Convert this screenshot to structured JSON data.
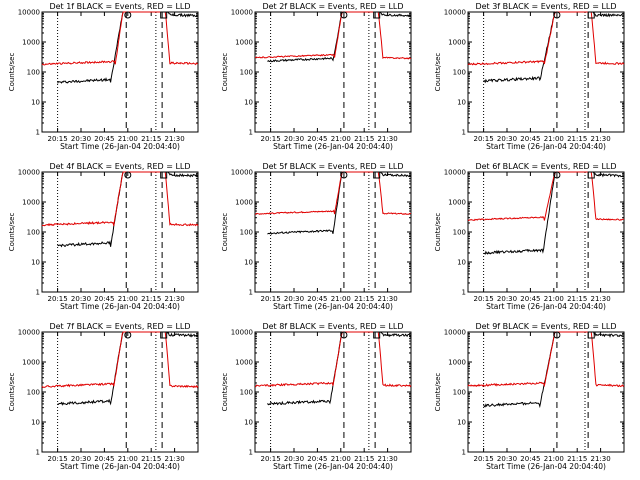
{
  "colors": {
    "events": "#000000",
    "lld": "#e00000",
    "axes": "#000000",
    "background": "#ffffff"
  },
  "chart_data": [
    {
      "type": "line",
      "title": "Det 1f BLACK = Events, RED = LLD",
      "xlabel": "Start Time (26-Jan-04 20:04:40)",
      "ylabel": "Counts/sec",
      "xticks": [
        "20:15",
        "20:30",
        "20:45",
        "21:00",
        "21:15",
        "21:30"
      ],
      "yticks": [
        "1",
        "10",
        "100",
        "1000",
        "10000"
      ],
      "yscale": "log",
      "ylim": [
        1,
        10000
      ],
      "xlim_minutes": [
        0,
        100
      ],
      "grid": false,
      "legend": "none",
      "series": [
        {
          "name": "BLACK = Events",
          "x_start": 10,
          "x_end": 100,
          "rise_start": 44,
          "peak_start": 52,
          "peak_end": 79,
          "fall_end": 82,
          "base": 45,
          "after": 8000,
          "noise": 0.04
        },
        {
          "name": "RED = LLD",
          "x_start": 0,
          "x_end": 100,
          "rise_start": 47,
          "peak_start": 52,
          "peak_end": 79,
          "fall_end": 82,
          "base": 180,
          "after": 200,
          "noise": 0.03
        }
      ],
      "vlines_dotted": [
        10,
        73
      ],
      "vlines_dashed": [
        54,
        77
      ],
      "markers": [
        {
          "shape": "circle",
          "x": 55
        },
        {
          "shape": "square",
          "x": 78
        }
      ]
    },
    {
      "type": "line",
      "title": "Det 2f BLACK = Events, RED = LLD",
      "xlabel": "Start Time (26-Jan-04 20:04:40)",
      "ylabel": "Counts/sec",
      "xticks": [
        "20:15",
        "20:30",
        "20:45",
        "21:00",
        "21:15",
        "21:30"
      ],
      "yticks": [
        "1",
        "10",
        "100",
        "1000",
        "10000"
      ],
      "yscale": "log",
      "ylim": [
        1,
        10000
      ],
      "xlim_minutes": [
        0,
        100
      ],
      "grid": false,
      "legend": "none",
      "series": [
        {
          "name": "BLACK = Events",
          "x_start": 8,
          "x_end": 100,
          "rise_start": 50,
          "peak_start": 56,
          "peak_end": 79,
          "fall_end": 82,
          "base": 230,
          "after": 8000,
          "noise": 0.03
        },
        {
          "name": "RED = LLD",
          "x_start": 0,
          "x_end": 100,
          "rise_start": 51,
          "peak_start": 56,
          "peak_end": 79,
          "fall_end": 82,
          "base": 300,
          "after": 300,
          "noise": 0.02
        }
      ],
      "vlines_dotted": [
        10,
        73
      ],
      "vlines_dashed": [
        57,
        77
      ],
      "markers": [
        {
          "shape": "circle",
          "x": 57
        },
        {
          "shape": "square",
          "x": 78
        }
      ]
    },
    {
      "type": "line",
      "title": "Det 3f BLACK = Events, RED = LLD",
      "xlabel": "Start Time (26-Jan-04 20:04:40)",
      "ylabel": "Counts/sec",
      "xticks": [
        "20:15",
        "20:30",
        "20:45",
        "21:00",
        "21:15",
        "21:30"
      ],
      "yticks": [
        "1",
        "10",
        "100",
        "1000",
        "10000"
      ],
      "yscale": "log",
      "ylim": [
        1,
        10000
      ],
      "xlim_minutes": [
        0,
        100
      ],
      "grid": false,
      "legend": "none",
      "series": [
        {
          "name": "BLACK = Events",
          "x_start": 10,
          "x_end": 100,
          "rise_start": 46,
          "peak_start": 56,
          "peak_end": 79,
          "fall_end": 82,
          "base": 50,
          "after": 8000,
          "noise": 0.04
        },
        {
          "name": "RED = LLD",
          "x_start": 0,
          "x_end": 100,
          "rise_start": 49,
          "peak_start": 56,
          "peak_end": 79,
          "fall_end": 82,
          "base": 180,
          "after": 200,
          "noise": 0.03
        }
      ],
      "vlines_dotted": [
        10,
        75
      ],
      "vlines_dashed": [
        57,
        77
      ],
      "markers": [
        {
          "shape": "circle",
          "x": 57
        },
        {
          "shape": "square",
          "x": 79
        }
      ]
    },
    {
      "type": "line",
      "title": "Det 4f BLACK = Events, RED = LLD",
      "xlabel": "Start Time (26-Jan-04 20:04:40)",
      "ylabel": "Counts/sec",
      "xticks": [
        "20:15",
        "20:30",
        "20:45",
        "21:00",
        "21:15",
        "21:30"
      ],
      "yticks": [
        "1",
        "10",
        "100",
        "1000",
        "10000"
      ],
      "yscale": "log",
      "ylim": [
        1,
        10000
      ],
      "xlim_minutes": [
        0,
        100
      ],
      "grid": false,
      "legend": "none",
      "series": [
        {
          "name": "BLACK = Events",
          "x_start": 10,
          "x_end": 100,
          "rise_start": 44,
          "peak_start": 52,
          "peak_end": 79,
          "fall_end": 82,
          "base": 35,
          "after": 8000,
          "noise": 0.04
        },
        {
          "name": "RED = LLD",
          "x_start": 0,
          "x_end": 100,
          "rise_start": 46,
          "peak_start": 52,
          "peak_end": 79,
          "fall_end": 82,
          "base": 170,
          "after": 180,
          "noise": 0.03
        }
      ],
      "vlines_dotted": [
        10,
        73
      ],
      "vlines_dashed": [
        54,
        77
      ],
      "markers": [
        {
          "shape": "circle",
          "x": 55
        },
        {
          "shape": "square",
          "x": 78
        }
      ]
    },
    {
      "type": "line",
      "title": "Det 5f BLACK = Events, RED = LLD",
      "xlabel": "Start Time (26-Jan-04 20:04:40)",
      "ylabel": "Counts/sec",
      "xticks": [
        "20:15",
        "20:30",
        "20:45",
        "21:00",
        "21:15",
        "21:30"
      ],
      "yticks": [
        "1",
        "10",
        "100",
        "1000",
        "10000"
      ],
      "yscale": "log",
      "ylim": [
        1,
        10000
      ],
      "xlim_minutes": [
        0,
        100
      ],
      "grid": false,
      "legend": "none",
      "series": [
        {
          "name": "BLACK = Events",
          "x_start": 8,
          "x_end": 100,
          "rise_start": 50,
          "peak_start": 56,
          "peak_end": 79,
          "fall_end": 82,
          "base": 90,
          "after": 8000,
          "noise": 0.03
        },
        {
          "name": "RED = LLD",
          "x_start": 0,
          "x_end": 100,
          "rise_start": 51,
          "peak_start": 56,
          "peak_end": 79,
          "fall_end": 82,
          "base": 400,
          "after": 420,
          "noise": 0.02
        }
      ],
      "vlines_dotted": [
        10,
        73
      ],
      "vlines_dashed": [
        57,
        77
      ],
      "markers": [
        {
          "shape": "circle",
          "x": 57
        },
        {
          "shape": "square",
          "x": 78
        }
      ]
    },
    {
      "type": "line",
      "title": "Det 6f BLACK = Events, RED = LLD",
      "xlabel": "Start Time (26-Jan-04 20:04:40)",
      "ylabel": "Counts/sec",
      "xticks": [
        "20:15",
        "20:30",
        "20:45",
        "21:00",
        "21:15",
        "21:30"
      ],
      "yticks": [
        "1",
        "10",
        "100",
        "1000",
        "10000"
      ],
      "yscale": "log",
      "ylim": [
        1,
        10000
      ],
      "xlim_minutes": [
        0,
        100
      ],
      "grid": false,
      "legend": "none",
      "series": [
        {
          "name": "BLACK = Events",
          "x_start": 10,
          "x_end": 100,
          "rise_start": 48,
          "peak_start": 56,
          "peak_end": 79,
          "fall_end": 82,
          "base": 20,
          "after": 8000,
          "noise": 0.04
        },
        {
          "name": "RED = LLD",
          "x_start": 0,
          "x_end": 100,
          "rise_start": 49,
          "peak_start": 56,
          "peak_end": 79,
          "fall_end": 82,
          "base": 250,
          "after": 270,
          "noise": 0.02
        }
      ],
      "vlines_dotted": [
        10,
        75
      ],
      "vlines_dashed": [
        57,
        77
      ],
      "markers": [
        {
          "shape": "circle",
          "x": 57
        },
        {
          "shape": "square",
          "x": 79
        }
      ]
    },
    {
      "type": "line",
      "title": "Det 7f BLACK = Events, RED = LLD",
      "xlabel": "Start Time (26-Jan-04 20:04:40)",
      "ylabel": "Counts/sec",
      "xticks": [
        "20:15",
        "20:30",
        "20:45",
        "21:00",
        "21:15",
        "21:30"
      ],
      "yticks": [
        "1",
        "10",
        "100",
        "1000",
        "10000"
      ],
      "yscale": "log",
      "ylim": [
        1,
        10000
      ],
      "xlim_minutes": [
        0,
        100
      ],
      "grid": false,
      "legend": "none",
      "series": [
        {
          "name": "BLACK = Events",
          "x_start": 10,
          "x_end": 100,
          "rise_start": 44,
          "peak_start": 52,
          "peak_end": 79,
          "fall_end": 82,
          "base": 40,
          "after": 8000,
          "noise": 0.04
        },
        {
          "name": "RED = LLD",
          "x_start": 0,
          "x_end": 100,
          "rise_start": 46,
          "peak_start": 52,
          "peak_end": 79,
          "fall_end": 82,
          "base": 150,
          "after": 160,
          "noise": 0.03
        }
      ],
      "vlines_dotted": [
        10,
        73
      ],
      "vlines_dashed": [
        54,
        77
      ],
      "markers": [
        {
          "shape": "circle",
          "x": 55
        },
        {
          "shape": "square",
          "x": 78
        }
      ]
    },
    {
      "type": "line",
      "title": "Det 8f BLACK = Events, RED = LLD",
      "xlabel": "Start Time (26-Jan-04 20:04:40)",
      "ylabel": "Counts/sec",
      "xticks": [
        "20:15",
        "20:30",
        "20:45",
        "21:00",
        "21:15",
        "21:30"
      ],
      "yticks": [
        "1",
        "10",
        "100",
        "1000",
        "10000"
      ],
      "yscale": "log",
      "ylim": [
        1,
        10000
      ],
      "xlim_minutes": [
        0,
        100
      ],
      "grid": false,
      "legend": "none",
      "series": [
        {
          "name": "BLACK = Events",
          "x_start": 8,
          "x_end": 100,
          "rise_start": 48,
          "peak_start": 56,
          "peak_end": 79,
          "fall_end": 82,
          "base": 40,
          "after": 8000,
          "noise": 0.04
        },
        {
          "name": "RED = LLD",
          "x_start": 0,
          "x_end": 100,
          "rise_start": 50,
          "peak_start": 56,
          "peak_end": 79,
          "fall_end": 82,
          "base": 160,
          "after": 170,
          "noise": 0.03
        }
      ],
      "vlines_dotted": [
        10,
        73
      ],
      "vlines_dashed": [
        57,
        77
      ],
      "markers": [
        {
          "shape": "circle",
          "x": 57
        },
        {
          "shape": "square",
          "x": 78
        }
      ]
    },
    {
      "type": "line",
      "title": "Det 9f BLACK = Events, RED = LLD",
      "xlabel": "Start Time (26-Jan-04 20:04:40)",
      "ylabel": "Counts/sec",
      "xticks": [
        "20:15",
        "20:30",
        "20:45",
        "21:00",
        "21:15",
        "21:30"
      ],
      "yticks": [
        "1",
        "10",
        "100",
        "1000",
        "10000"
      ],
      "yscale": "log",
      "ylim": [
        1,
        10000
      ],
      "xlim_minutes": [
        0,
        100
      ],
      "grid": false,
      "legend": "none",
      "series": [
        {
          "name": "BLACK = Events",
          "x_start": 10,
          "x_end": 100,
          "rise_start": 46,
          "peak_start": 56,
          "peak_end": 79,
          "fall_end": 82,
          "base": 35,
          "after": 8000,
          "noise": 0.04
        },
        {
          "name": "RED = LLD",
          "x_start": 0,
          "x_end": 100,
          "rise_start": 49,
          "peak_start": 56,
          "peak_end": 79,
          "fall_end": 82,
          "base": 160,
          "after": 170,
          "noise": 0.03
        }
      ],
      "vlines_dotted": [
        10,
        75
      ],
      "vlines_dashed": [
        57,
        77
      ],
      "markers": [
        {
          "shape": "circle",
          "x": 57
        },
        {
          "shape": "square",
          "x": 79
        }
      ]
    }
  ]
}
